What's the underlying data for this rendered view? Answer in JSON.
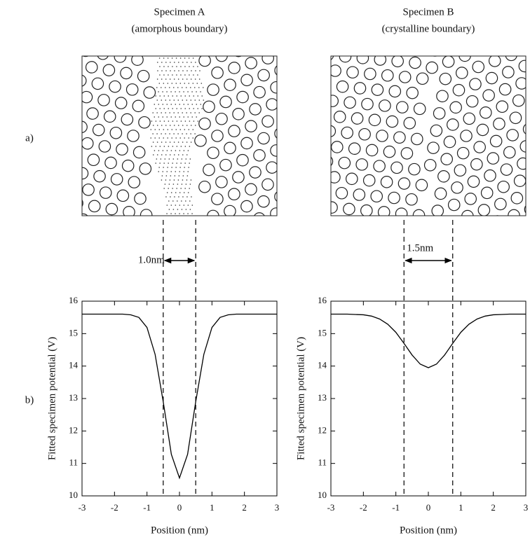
{
  "panel_labels": [
    "a)",
    "b)"
  ],
  "chart_data": [
    {
      "type": "line",
      "title": "Specimen A",
      "subtitle": "(amorphous boundary)",
      "x_label": "Position (nm)",
      "y_label": "Fitted specimen potential (V)",
      "x": [
        -3,
        -2.75,
        -2.5,
        -2.25,
        -2,
        -1.75,
        -1.5,
        -1.25,
        -1,
        -0.75,
        -0.5,
        -0.25,
        0,
        0.25,
        0.5,
        0.75,
        1,
        1.25,
        1.5,
        1.75,
        2,
        2.25,
        2.5,
        2.75,
        3
      ],
      "values": [
        15.6,
        15.6,
        15.6,
        15.6,
        15.6,
        15.6,
        15.58,
        15.5,
        15.19,
        14.36,
        12.9,
        11.28,
        10.55,
        11.28,
        12.9,
        14.36,
        15.19,
        15.5,
        15.58,
        15.6,
        15.6,
        15.6,
        15.6,
        15.6,
        15.6
      ],
      "color": "#000000",
      "xlim": [
        -3,
        3
      ],
      "xticks": [
        -3,
        -2,
        -1,
        0,
        1,
        2,
        3
      ],
      "ylim": [
        10,
        16
      ],
      "yticks": [
        10,
        11,
        12,
        13,
        14,
        15,
        16
      ],
      "vlines": [
        -0.5,
        0.5
      ],
      "annotation": "1.0nm"
    },
    {
      "type": "line",
      "title": "Specimen B",
      "subtitle": "(crystalline boundary)",
      "x_label": "Position (nm)",
      "y_label": "Fitted specimen potential (V)",
      "x": [
        -3,
        -2.75,
        -2.5,
        -2.25,
        -2,
        -1.75,
        -1.5,
        -1.25,
        -1,
        -0.75,
        -0.5,
        -0.25,
        0,
        0.25,
        0.5,
        0.75,
        1,
        1.25,
        1.5,
        1.75,
        2,
        2.25,
        2.5,
        2.75,
        3
      ],
      "values": [
        15.6,
        15.6,
        15.6,
        15.59,
        15.58,
        15.54,
        15.45,
        15.29,
        15.04,
        14.7,
        14.34,
        14.06,
        13.95,
        14.06,
        14.34,
        14.7,
        15.04,
        15.29,
        15.45,
        15.54,
        15.58,
        15.59,
        15.6,
        15.6,
        15.6
      ],
      "color": "#000000",
      "xlim": [
        -3,
        3
      ],
      "xticks": [
        -3,
        -2,
        -1,
        0,
        1,
        2,
        3
      ],
      "ylim": [
        10,
        16
      ],
      "yticks": [
        10,
        11,
        12,
        13,
        14,
        15,
        16
      ],
      "vlines": [
        -0.75,
        0.75
      ],
      "annotation": "1.5nm"
    }
  ]
}
